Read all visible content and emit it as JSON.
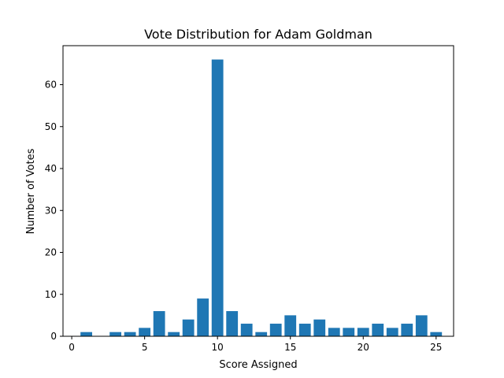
{
  "chart_data": {
    "type": "bar",
    "title": "Vote Distribution for Adam Goldman",
    "xlabel": "Score Assigned",
    "ylabel": "Number of Votes",
    "x": [
      1,
      2,
      3,
      4,
      5,
      6,
      7,
      8,
      9,
      10,
      11,
      12,
      13,
      14,
      15,
      16,
      17,
      18,
      19,
      20,
      21,
      22,
      23,
      24,
      25
    ],
    "values": [
      1,
      0,
      1,
      1,
      2,
      6,
      1,
      4,
      9,
      66,
      6,
      3,
      1,
      3,
      5,
      3,
      4,
      2,
      2,
      2,
      3,
      2,
      3,
      5,
      1
    ],
    "xlim": [
      -0.6,
      26.2
    ],
    "ylim": [
      0,
      69.3
    ],
    "xticks": [
      0,
      5,
      10,
      15,
      20,
      25
    ],
    "xtick_labels": [
      "0",
      "5",
      "10",
      "15",
      "20",
      "25"
    ],
    "yticks": [
      0,
      10,
      20,
      30,
      40,
      50,
      60
    ],
    "ytick_labels": [
      "0",
      "10",
      "20",
      "30",
      "40",
      "50",
      "60"
    ],
    "bar_width": 0.8,
    "bar_color": "#1f77b4",
    "grid": false,
    "legend": "none"
  }
}
